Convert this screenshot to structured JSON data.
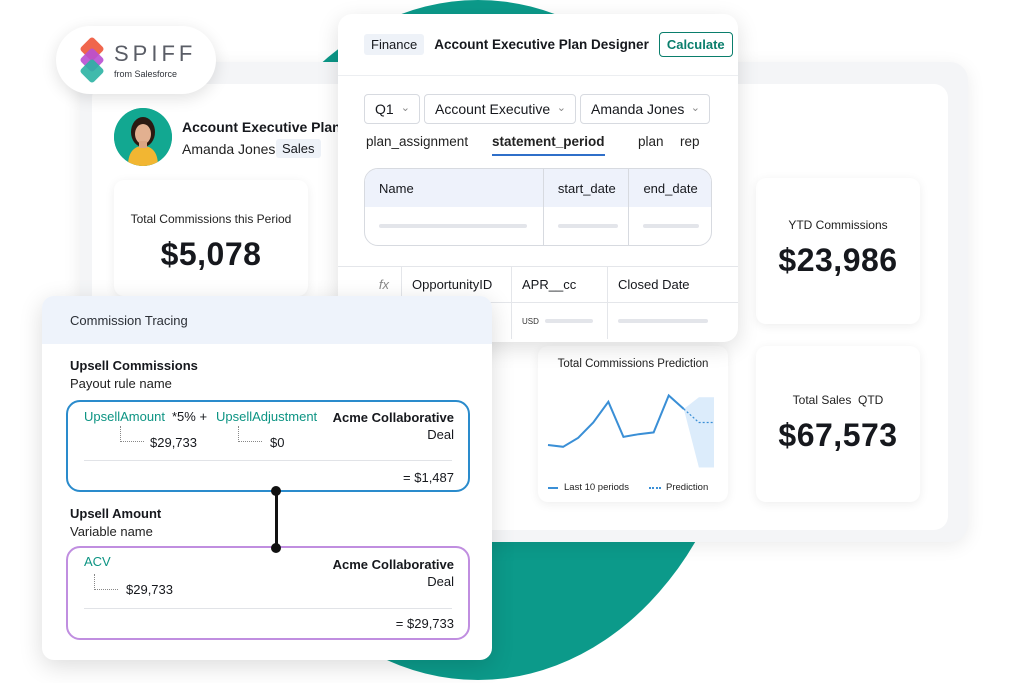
{
  "brand": {
    "word": "SPIFF",
    "sub": "from Salesforce",
    "colors": [
      "#f0664d",
      "#b94fd3",
      "#2bb3a3"
    ]
  },
  "plan": {
    "title": "Account Executive Plan",
    "name": "Amanda Jones",
    "badge": "Sales"
  },
  "stats": {
    "period": {
      "label": "Total Commissions this Period",
      "value": "$5,078"
    },
    "ytd": {
      "label": "YTD Commissions",
      "value": "$23,986"
    },
    "qtd": {
      "label": "Total Sales  QTD",
      "value": "$67,573"
    }
  },
  "designer": {
    "tag": "Finance",
    "title": "Account Executive Plan Designer",
    "calculate_label": "Calculate",
    "selects": [
      "Q1",
      "Account Executive",
      "Amanda Jones"
    ],
    "tabs": [
      "plan_assignment",
      "statement_period",
      "plan",
      "rep"
    ],
    "active_tab": "statement_period",
    "inner_columns": [
      "Name",
      "start_date",
      "end_date"
    ],
    "lower_columns": [
      "fx",
      "OpportunityID",
      "APR__cc",
      "Closed Date"
    ],
    "currency": "USD"
  },
  "chart": {
    "title": "Total Commissions Prediction",
    "legend": [
      "Last 10 periods",
      "Prediction"
    ],
    "accent": "#3a8fd6",
    "prediction_fill": "#dcecfb"
  },
  "chart_data": {
    "type": "line",
    "title": "Total Commissions Prediction",
    "series": [
      {
        "name": "Last 10 periods",
        "values": [
          3,
          2.8,
          3.8,
          5.5,
          7.8,
          3.9,
          4.2,
          4.4,
          8.5,
          7
        ]
      },
      {
        "name": "Prediction",
        "values": [
          7,
          5.5,
          5.5
        ]
      }
    ],
    "ylim": [
      0,
      10
    ],
    "grid": false,
    "legend_position": "bottom"
  },
  "tracing": {
    "header": "Commission Tracing",
    "upsell": {
      "title": "Upsell Commissions",
      "subtitle": "Payout rule name",
      "formula_var1": "UpsellAmount",
      "formula_op": "*5% +",
      "formula_var2": "UpsellAdjustment",
      "account": "Acme Collaborative",
      "type": "Deal",
      "val1": "$29,733",
      "val2": "$0",
      "result": "= $1,487",
      "border": "#2a8bcc"
    },
    "amount": {
      "title": "Upsell Amount",
      "subtitle": "Variable name",
      "var": "ACV",
      "account": "Acme Collaborative",
      "type": "Deal",
      "val": "$29,733",
      "result": "= $29,733",
      "border": "#c08ee0"
    }
  }
}
